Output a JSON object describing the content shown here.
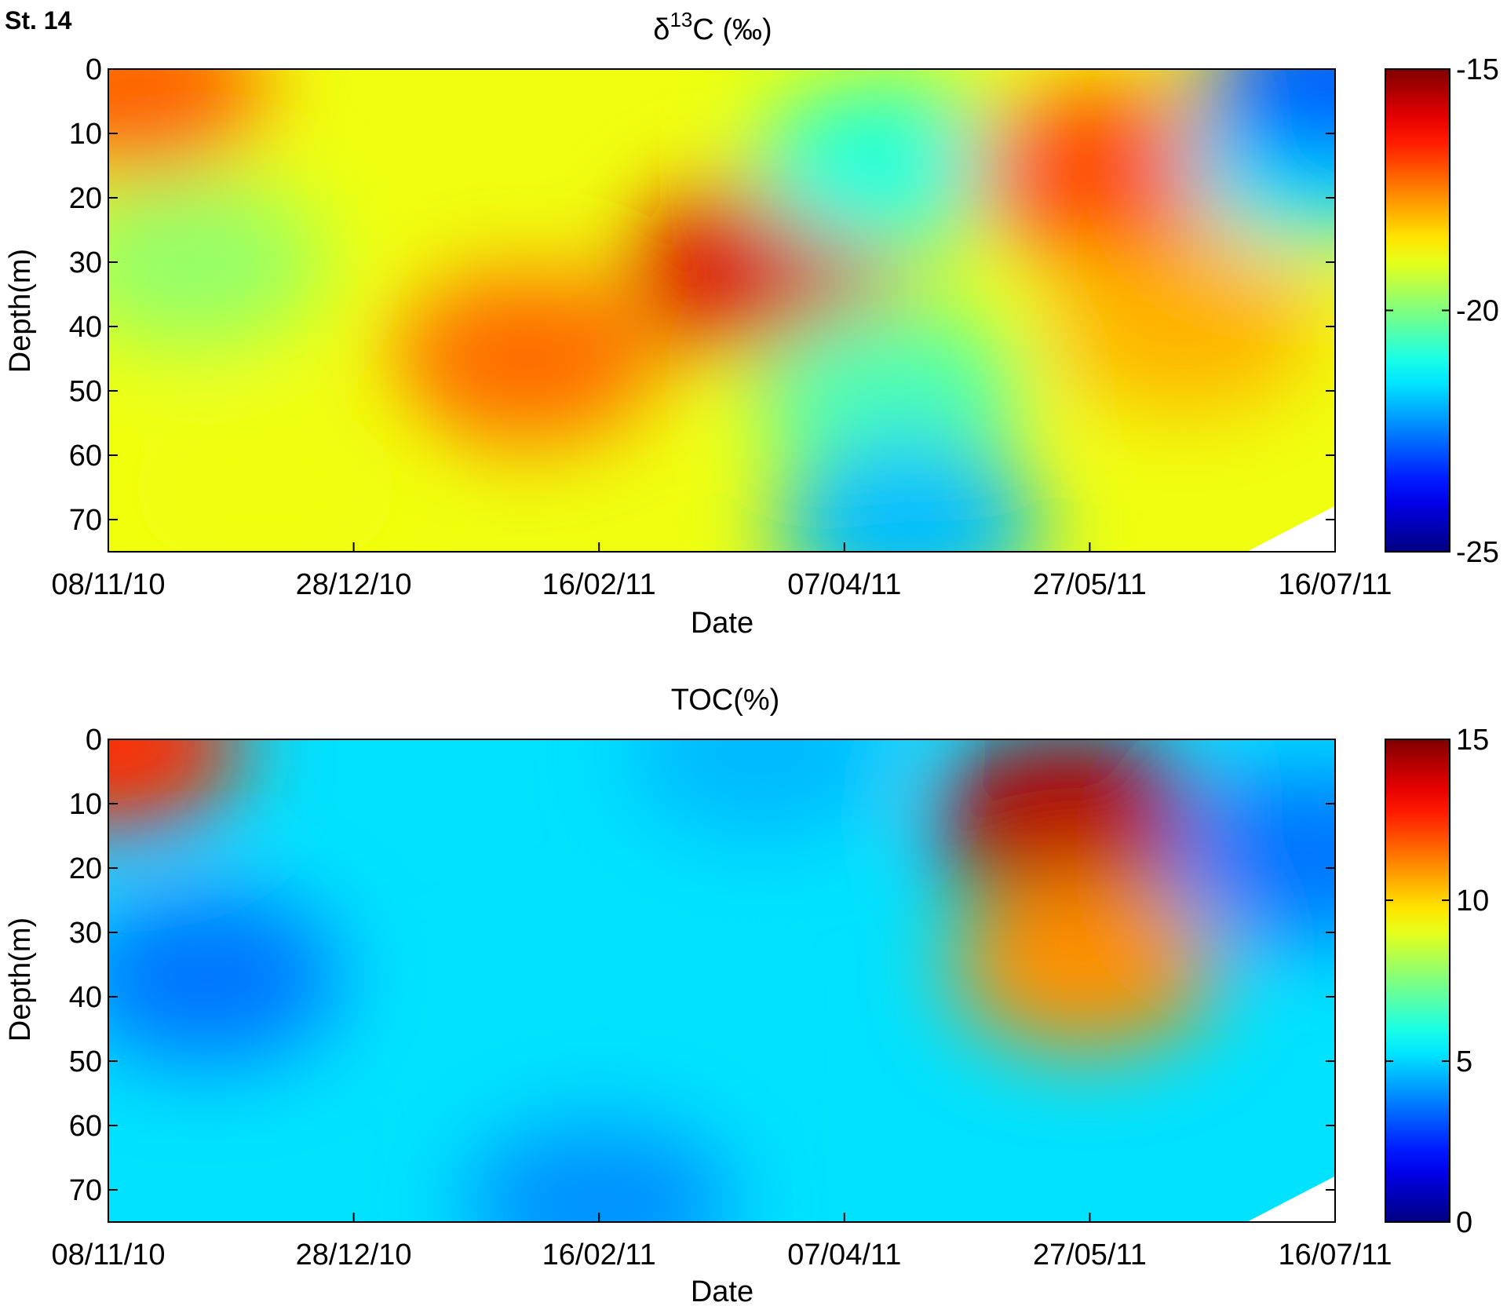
{
  "station_label": "St. 14",
  "chart_data": [
    {
      "type": "heatmap",
      "title_main": "δ",
      "title_sup": "13",
      "title_rest": "C (‰)",
      "xlabel": "Date",
      "ylabel": "Depth(m)",
      "x_ticks": [
        "08/11/10",
        "28/12/10",
        "16/02/11",
        "07/04/11",
        "27/05/11",
        "16/07/11"
      ],
      "x_range": [
        "08/11/10",
        "16/07/11"
      ],
      "y_ticks": [
        "0",
        "10",
        "20",
        "30",
        "40",
        "50",
        "60",
        "70"
      ],
      "ylim": [
        0,
        75
      ],
      "y_reversed": true,
      "colorbar_ticks": [
        "-15",
        "-20",
        "-25"
      ],
      "colorbar_range": [
        -25,
        -15
      ],
      "colormap": "jet",
      "features": [
        {
          "date": "13/11/10",
          "depth": 3,
          "value": -17.2
        },
        {
          "date": "25/11/10",
          "depth": 30,
          "value": -19.8
        },
        {
          "date": "10/12/10",
          "depth": 65,
          "value": -18.9
        },
        {
          "date": "01/02/11",
          "depth": 45,
          "value": -17.3
        },
        {
          "date": "22/03/11",
          "depth": 31,
          "value": -15.9
        },
        {
          "date": "16/04/11",
          "depth": 15,
          "value": -20.9
        },
        {
          "date": "16/04/11",
          "depth": 50,
          "value": -20.5
        },
        {
          "date": "20/04/11",
          "depth": 71,
          "value": -21.9
        },
        {
          "date": "30/05/11",
          "depth": 16,
          "value": -17.0
        },
        {
          "date": "15/06/11",
          "depth": 40,
          "value": -18.0
        },
        {
          "date": "12/07/11",
          "depth": 14,
          "value": -21.5
        },
        {
          "date": "16/07/11",
          "depth": 2,
          "value": -22.8
        }
      ]
    },
    {
      "type": "heatmap",
      "title": "TOC(%)",
      "xlabel": "Date",
      "ylabel": "Depth(m)",
      "x_ticks": [
        "08/11/10",
        "28/12/10",
        "16/02/11",
        "07/04/11",
        "27/05/11",
        "16/07/11"
      ],
      "x_range": [
        "08/11/10",
        "16/07/11"
      ],
      "y_ticks": [
        "0",
        "10",
        "20",
        "30",
        "40",
        "50",
        "60",
        "70"
      ],
      "ylim": [
        0,
        75
      ],
      "y_reversed": true,
      "colorbar_ticks": [
        "15",
        "10",
        "5",
        "0"
      ],
      "colorbar_range": [
        0,
        15
      ],
      "colormap": "jet",
      "features": [
        {
          "date": "08/11/10",
          "depth": 1,
          "value": 12.5
        },
        {
          "date": "28/11/10",
          "depth": 37,
          "value": 3.6
        },
        {
          "date": "16/02/11",
          "depth": 72,
          "value": 4.0
        },
        {
          "date": "16/02/11",
          "depth": 45,
          "value": 5.2
        },
        {
          "date": "21/03/11",
          "depth": 2,
          "value": 4.6
        },
        {
          "date": "22/05/11",
          "depth": 12,
          "value": 14.2
        },
        {
          "date": "26/05/11",
          "depth": 35,
          "value": 11.0
        },
        {
          "date": "10/07/11",
          "depth": 18,
          "value": 3.6
        }
      ]
    }
  ]
}
